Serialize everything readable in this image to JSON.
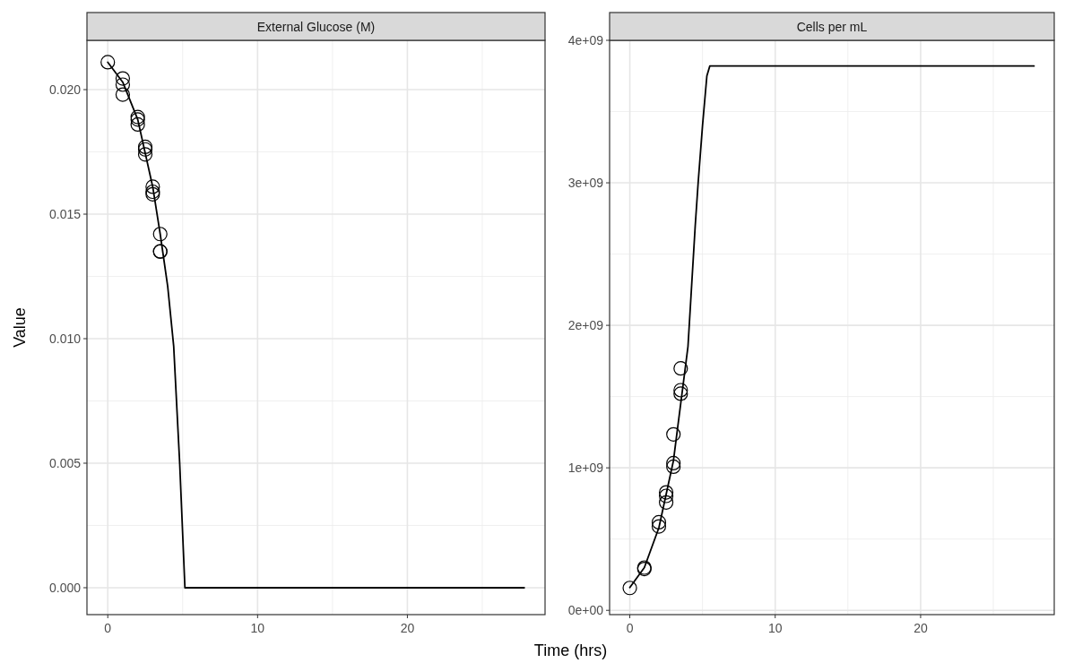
{
  "chart_data": [
    {
      "type": "scatter",
      "title": "External Glucose (M)",
      "xlabel": "Time (hrs)",
      "ylabel": "Value",
      "grid": true,
      "xlim": [
        -1.39,
        29.19
      ],
      "xticks": [
        0,
        10,
        20
      ],
      "ylim": [
        -0.00108,
        0.02198
      ],
      "yticks": [
        {
          "value": 0,
          "label": "0.000"
        },
        {
          "value": 0.005,
          "label": "0.005"
        },
        {
          "value": 0.01,
          "label": "0.010"
        },
        {
          "value": 0.015,
          "label": "0.015"
        },
        {
          "value": 0.02,
          "label": "0.020"
        }
      ],
      "series": [
        {
          "marker": "circle",
          "color": "#000000",
          "x": [
            0,
            1,
            1,
            1,
            2,
            2,
            2,
            2.5,
            2.5,
            2.5,
            3,
            3,
            3,
            3.5,
            3.5,
            3.5
          ],
          "values": [
            0.0211,
            0.02045,
            0.0202,
            0.0198,
            0.0189,
            0.0188,
            0.0186,
            0.0177,
            0.0176,
            0.0174,
            0.0161,
            0.0159,
            0.0158,
            0.0142,
            0.0135,
            0.0135
          ]
        },
        {
          "type": "line",
          "color": "#000000",
          "x": [
            0,
            1,
            2,
            3,
            3.5,
            4,
            4.4,
            4.8,
            5.15,
            27.8
          ],
          "values": [
            0.0211,
            0.0203,
            0.0188,
            0.0161,
            0.0142,
            0.0121,
            0.0097,
            0.005,
            0,
            0
          ]
        }
      ]
    },
    {
      "type": "scatter",
      "title": "Cells per mL",
      "grid": true,
      "xlim": [
        -1.39,
        29.19
      ],
      "xticks": [
        0,
        10,
        20
      ],
      "ylim": [
        -30000000,
        4000000000
      ],
      "yticks": [
        {
          "value": 0,
          "label": "0e+00"
        },
        {
          "value": 1000000000,
          "label": "1e+09"
        },
        {
          "value": 2000000000,
          "label": "2e+09"
        },
        {
          "value": 3000000000,
          "label": "3e+09"
        },
        {
          "value": 4000000000,
          "label": "4e+09"
        }
      ],
      "series": [
        {
          "marker": "circle",
          "color": "#000000",
          "x": [
            0,
            1,
            1,
            2,
            2,
            2.5,
            2.5,
            2.5,
            3,
            3,
            3,
            3.5,
            3.5,
            3.5
          ],
          "values": [
            157000000,
            290000000,
            300000000,
            618000000,
            589000000,
            828000000,
            803000000,
            757000000,
            1235000000,
            1033000000,
            1008000000,
            1698000000,
            1545000000,
            1520000000
          ]
        },
        {
          "type": "line",
          "color": "#000000",
          "x": [
            0,
            1,
            2,
            3,
            3.5,
            4,
            4.5,
            4.7,
            5,
            5.3,
            5.5,
            27.8
          ],
          "values": [
            160000000,
            300000000,
            580000000,
            1050000000,
            1450000000,
            1850000000,
            2700000000,
            3000000000,
            3400000000,
            3750000000,
            3820000000,
            3820000000
          ]
        }
      ]
    }
  ]
}
